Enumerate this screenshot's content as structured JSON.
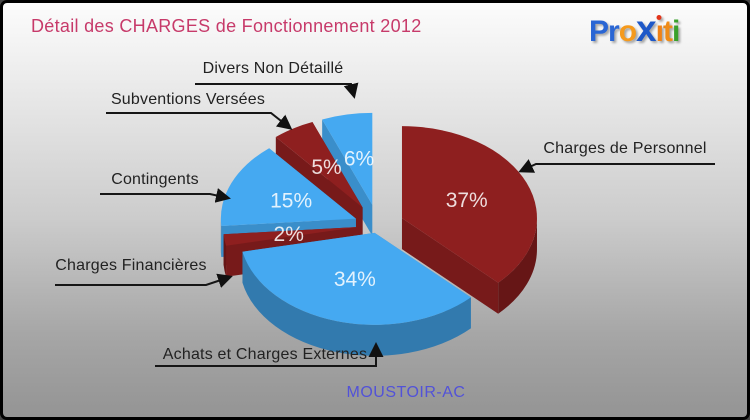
{
  "header": {
    "title": "Détail des CHARGES de Fonctionnement 2012",
    "title_color": "#c73a6a"
  },
  "logo": {
    "name": "Proxiti",
    "letters": [
      {
        "char": "P",
        "color": "#2a66d4"
      },
      {
        "char": "r",
        "color": "#2a66d4"
      },
      {
        "char": "o",
        "color": "#f59a1d"
      },
      {
        "char": "x",
        "color": "#1e58c8",
        "big": true
      },
      {
        "char": "i",
        "color": "#f08216",
        "dot": "#e2351b"
      },
      {
        "char": "t",
        "color": "#ef8c18"
      },
      {
        "char": "i",
        "color": "#3aa12c"
      }
    ]
  },
  "footer": {
    "entity": "MOUSTOIR-AC",
    "color": "#5252d8"
  },
  "chart_data": {
    "type": "pie",
    "title": "Détail des CHARGES de Fonctionnement 2012",
    "entity": "MOUSTOIR-AC",
    "value_suffix": "%",
    "slices": [
      {
        "label": "Charges de Personnel",
        "value": 37,
        "color": "#8e1f1f"
      },
      {
        "label": "Achats et Charges Externes",
        "value": 34,
        "color": "#45a9f1"
      },
      {
        "label": "Charges Financières",
        "value": 2,
        "color": "#8e1f1f"
      },
      {
        "label": "Contingents",
        "value": 15,
        "color": "#45a9f1"
      },
      {
        "label": "Subventions Versées",
        "value": 5,
        "color": "#8e1f1f"
      },
      {
        "label": "Divers Non Détaillé",
        "value": 6,
        "color": "#45a9f1"
      }
    ],
    "layout": {
      "style": "3d-exploded-pie",
      "start_angle_deg": 0,
      "direction": "clockwise",
      "value_labels": "inside-white",
      "callouts": "outside-black-arrows",
      "legend": "none"
    }
  }
}
